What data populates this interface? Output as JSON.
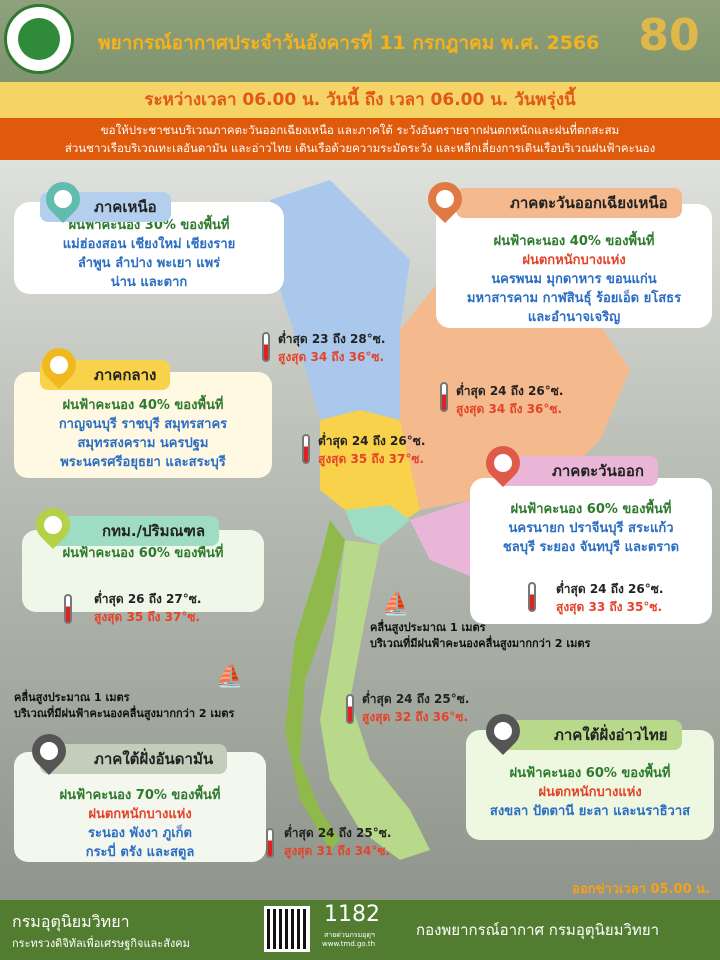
{
  "header": {
    "title": "พยากรณ์อากาศประจำวันอังคารที่ 11 กรกฎาคม พ.ศ. 2566",
    "anniversary": "๘๐"
  },
  "period": "ระหว่างเวลา 06.00 น. วันนี้ ถึง เวลา 06.00 น. วันพรุ่งนี้",
  "warning": [
    "ขอให้ประชาชนบริเวณภาคตะวันออกเฉียงเหนือ และภาคใต้ ระวังอันตรายจากฝนตกหนักและฝนที่ตกสะสม",
    "ส่วนชาวเรือบริเวณทะเลอันดามัน และอ่าวไทย เดินเรือด้วยความระมัดระวัง และหลีกเลี่ยงการเดินเรือบริเวณฝนฟ้าคะนอง"
  ],
  "regions": {
    "north": {
      "name": "ภาคเหนือ",
      "lines": [
        "ฝนฟ้าคะนอง 30% ของพื้นที่",
        "แม่ฮ่องสอน เชียงใหม่ เชียงราย",
        "ลำพูน ลำปาง พะเยา แพร่",
        "น่าน และตาก"
      ],
      "low": "ต่ำสุด 23 ถึง 28°ซ.",
      "high": "สูงสุด 34 ถึง 36°ซ.",
      "color": "#a9c8ec"
    },
    "northeast": {
      "name": "ภาคตะวันออกเฉียงเหนือ",
      "lines": [
        "ฝนฟ้าคะนอง 40% ของพื้นที่"
      ],
      "red": "ฝนตกหนักบางแห่ง",
      "lines2": [
        "นครพนม มุกดาหาร ขอนแก่น",
        "มหาสารคาม กาฬสินธุ์ ร้อยเอ็ด ยโสธร",
        "และอำนาจเจริญ"
      ],
      "low": "ต่ำสุด 24 ถึง 26°ซ.",
      "high": "สูงสุด 34 ถึง 36°ซ.",
      "color": "#f4b98c"
    },
    "central": {
      "name": "ภาคกลาง",
      "lines": [
        "ฝนฟ้าคะนอง 40% ของพื้นที่",
        "กาญจนบุรี ราชบุรี สมุทรสาคร",
        "สมุทรสงคราม นครปฐม",
        "พระนครศรีอยุธยา และสระบุรี"
      ],
      "low": "ต่ำสุด 24 ถึง 26°ซ.",
      "high": "สูงสุด 35 ถึง 37°ซ.",
      "color": "#f8d24a"
    },
    "east": {
      "name": "ภาคตะวันออก",
      "lines": [
        "ฝนฟ้าคะนอง 60% ของพื้นที่",
        "นครนายก ปราจีนบุรี สระแก้ว",
        "ชลบุรี ระยอง จันทบุรี และตราด"
      ],
      "low": "ต่ำสุด 24 ถึง 26°ซ.",
      "high": "สูงสุด 33 ถึง 35°ซ.",
      "color": "#e9b6d8"
    },
    "bangkok": {
      "name": "กทม./ปริมณฑล",
      "lines": [
        "ฝนฟ้าคะนอง 60% ของพื้นที่"
      ],
      "low": "ต่ำสุด 26 ถึง 27°ซ.",
      "high": "สูงสุด 35 ถึง 37°ซ.",
      "color": "#9fdcc4"
    },
    "south_east": {
      "name": "ภาคใต้ฝั่งอ่าวไทย",
      "lines": [
        "ฝนฟ้าคะนอง 60% ของพื้นที่"
      ],
      "red": "ฝนตกหนักบางแห่ง",
      "lines2": [
        "สงขลา ปัตตานี ยะลา และนราธิวาส"
      ],
      "low": "ต่ำสุด 24 ถึง 25°ซ.",
      "high": "สูงสุด 32 ถึง 36°ซ.",
      "color": "#b8d88a"
    },
    "south_west": {
      "name": "ภาคใต้ฝั่งอันดามัน",
      "lines": [
        "ฝนฟ้าคะนอง 70% ของพื้นที่"
      ],
      "red": "ฝนตกหนักบางแห่ง",
      "lines2": [
        "ระนอง พังงา ภูเก็ต",
        "กระบี่ ตรัง และสตูล"
      ],
      "low": "ต่ำสุด 24 ถึง 25°ซ.",
      "high": "สูงสุด 31 ถึง 34°ซ.",
      "color": "#8fb94a"
    }
  },
  "waves": {
    "gulf": [
      "คลื่นสูงประมาณ  1 เมตร",
      "บริเวณที่มีฝนฟ้าคะนองคลื่นสูงมากกว่า  2 เมตร"
    ],
    "andaman": [
      "คลื่นสูงประมาณ  1 เมตร",
      "บริเวณที่มีฝนฟ้าคะนองคลื่นสูงมากกว่า  2 เมตร"
    ]
  },
  "issued": "ออกข่าวเวลา 05.00 น.",
  "footer": {
    "org": "กรมอุตุนิยมวิทยา",
    "ministry": "กระทรวงดิจิทัลเพื่อเศรษฐกิจและสังคม",
    "hotline": "1182",
    "hotline_label": "สายด่วนกรมอุตุฯ",
    "website": "www.tmd.go.th",
    "division": "กองพยากรณ์อากาศ กรมอุตุนิยมวิทยา"
  }
}
